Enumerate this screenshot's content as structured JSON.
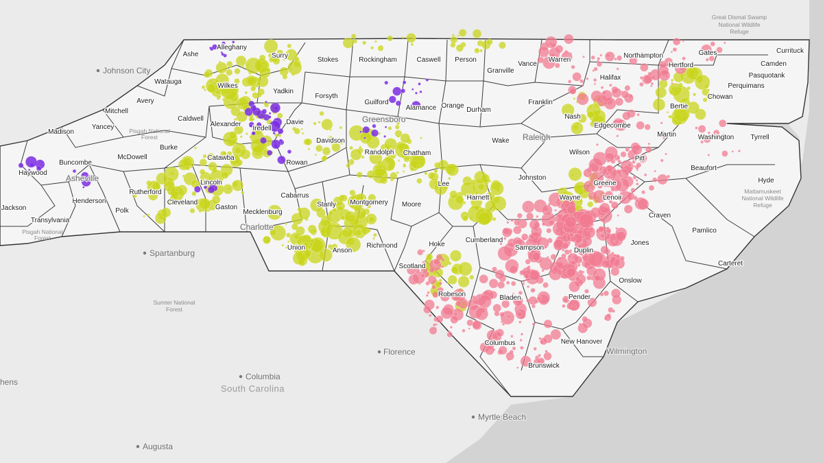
{
  "map": {
    "layer_colors": {
      "poultry": "#c8d41a",
      "swine": "#f07a90",
      "cattle": "#7a2be2"
    },
    "base_colors": {
      "land": "#ececec",
      "state": "#f4f4f4",
      "water": "#d2d2d2",
      "border": "#333333"
    },
    "counties": [
      "Ashe",
      "Alleghany",
      "Surry",
      "Stokes",
      "Rockingham",
      "Caswell",
      "Person",
      "Granville",
      "Vance",
      "Warren",
      "Northampton",
      "Gates",
      "Currituck",
      "Camden",
      "Hertford",
      "Pasquotank",
      "Perquimans",
      "Chowan",
      "Bertie",
      "Watauga",
      "Wilkes",
      "Yadkin",
      "Forsyth",
      "Guilford",
      "Alamance",
      "Orange",
      "Durham",
      "Halifax",
      "Franklin",
      "Nash",
      "Edgecombe",
      "Martin",
      "Washington",
      "Tyrrell",
      "Mitchell",
      "Avery",
      "Caldwell",
      "Yancey",
      "Madison",
      "Alexander",
      "Iredell",
      "Davie",
      "Davidson",
      "Rowan",
      "Randolph",
      "Chatham",
      "Wake",
      "Wilson",
      "Pitt",
      "Beaufort",
      "Hyde",
      "Burke",
      "McDowell",
      "Catawba",
      "Buncombe",
      "Haywood",
      "Johnston",
      "Greene",
      "Lincoln",
      "Cabarrus",
      "Stanly",
      "Montgomery",
      "Moore",
      "Lee",
      "Harnett",
      "Wayne",
      "Lenoir",
      "Craven",
      "Pamlico",
      "Rutherford",
      "Cleveland",
      "Gaston",
      "Mecklenburg",
      "Henderson",
      "Polk",
      "Jackson",
      "Transylvania",
      "Union",
      "Anson",
      "Richmond",
      "Scotland",
      "Hoke",
      "Cumberland",
      "Sampson",
      "Duplin",
      "Jones",
      "Onslow",
      "Carteret",
      "Robeson",
      "Bladen",
      "Pender",
      "Columbus",
      "New Hanover",
      "Brunswick"
    ],
    "cities": [
      "Johnson City",
      "Raleigh",
      "Spartanburg",
      "Florence",
      "Columbia",
      "Myrtle Beach",
      "Wilmington",
      "Augusta",
      "hens",
      "Greensboro",
      "Charlotte",
      "Asheville"
    ],
    "regions": [
      "South Carolina"
    ],
    "parks": [
      "Great Dismal Swamp",
      "National Wildlife",
      "Refuge",
      "Pisgah National",
      "Forest",
      "Pisgah National",
      "Forest",
      "Sumter National",
      "Forest",
      "Mattamuskeet",
      "National Wildlife",
      "Refuge"
    ]
  }
}
